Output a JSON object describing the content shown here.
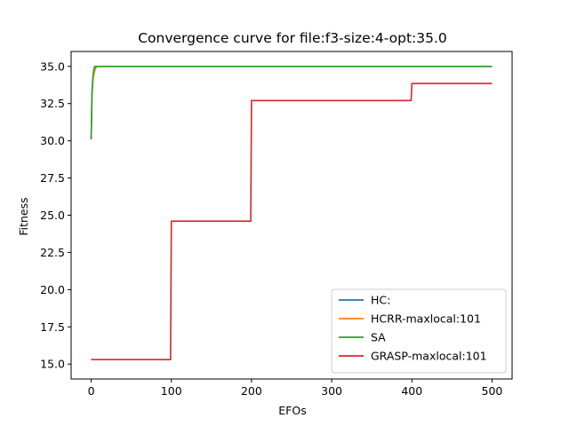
{
  "chart_data": {
    "type": "line",
    "title": "Convergence curve for file:f3-size:4-opt:35.0",
    "xlabel": "EFOs",
    "ylabel": "Fitness",
    "xlim": [
      -25,
      525
    ],
    "ylim": [
      14.0,
      36.0
    ],
    "xticks": [
      0,
      100,
      200,
      300,
      400,
      500
    ],
    "yticks": [
      15.0,
      17.5,
      20.0,
      22.5,
      25.0,
      27.5,
      30.0,
      32.5,
      35.0
    ],
    "xtick_labels": [
      "0",
      "100",
      "200",
      "300",
      "400",
      "500"
    ],
    "ytick_labels": [
      "15.0",
      "17.5",
      "20.0",
      "22.5",
      "25.0",
      "27.5",
      "30.0",
      "32.5",
      "35.0"
    ],
    "grid": false,
    "legend_position": "lower-right",
    "series": [
      {
        "name": "HC:",
        "color": "#1f77b4",
        "x": [
          0,
          1,
          2,
          3,
          4,
          5,
          500
        ],
        "y": [
          30.1,
          33.0,
          34.0,
          34.6,
          34.9,
          35.0,
          35.0
        ]
      },
      {
        "name": "HCRR-maxlocal:101",
        "color": "#ff7f0e",
        "x": [
          0,
          1,
          2,
          3,
          5,
          7,
          500
        ],
        "y": [
          30.1,
          33.0,
          33.9,
          34.4,
          34.8,
          35.0,
          35.0
        ]
      },
      {
        "name": "SA",
        "color": "#2ca02c",
        "x": [
          0,
          1,
          2,
          3,
          4,
          5,
          500
        ],
        "y": [
          30.1,
          33.2,
          34.2,
          34.7,
          34.95,
          35.0,
          35.0
        ]
      },
      {
        "name": "GRASP-maxlocal:101",
        "color": "#d62728",
        "x": [
          0,
          99,
          100,
          199,
          200,
          399,
          400,
          500
        ],
        "y": [
          15.3,
          15.3,
          24.6,
          24.6,
          32.7,
          32.7,
          33.85,
          33.85
        ]
      }
    ]
  }
}
